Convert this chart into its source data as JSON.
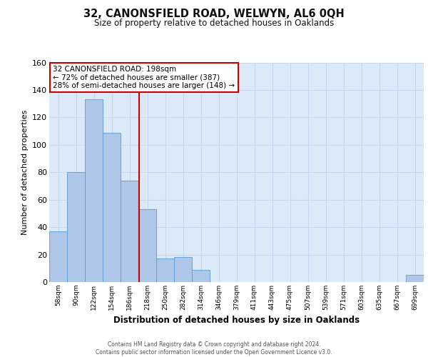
{
  "title": "32, CANONSFIELD ROAD, WELWYN, AL6 0QH",
  "subtitle": "Size of property relative to detached houses in Oaklands",
  "xlabel": "Distribution of detached houses by size in Oaklands",
  "ylabel": "Number of detached properties",
  "bin_labels": [
    "58sqm",
    "90sqm",
    "122sqm",
    "154sqm",
    "186sqm",
    "218sqm",
    "250sqm",
    "282sqm",
    "314sqm",
    "346sqm",
    "379sqm",
    "411sqm",
    "443sqm",
    "475sqm",
    "507sqm",
    "539sqm",
    "571sqm",
    "603sqm",
    "635sqm",
    "667sqm",
    "699sqm"
  ],
  "bar_heights": [
    37,
    80,
    133,
    109,
    74,
    53,
    17,
    18,
    9,
    0,
    0,
    0,
    0,
    0,
    0,
    0,
    0,
    0,
    0,
    0,
    5
  ],
  "bar_color": "#aec6e8",
  "bar_edge_color": "#5b9bd5",
  "property_line_x": 4.55,
  "property_line_color": "#cc0000",
  "annotation_line1": "32 CANONSFIELD ROAD: 198sqm",
  "annotation_line2": "← 72% of detached houses are smaller (387)",
  "annotation_line3": "28% of semi-detached houses are larger (148) →",
  "annotation_box_color": "#ffffff",
  "annotation_box_edge_color": "#cc0000",
  "ylim": [
    0,
    160
  ],
  "yticks": [
    0,
    20,
    40,
    60,
    80,
    100,
    120,
    140,
    160
  ],
  "grid_color": "#c5d8f0",
  "background_color": "#dce9f8",
  "footer_line1": "Contains HM Land Registry data © Crown copyright and database right 2024.",
  "footer_line2": "Contains public sector information licensed under the Open Government Licence v3.0."
}
